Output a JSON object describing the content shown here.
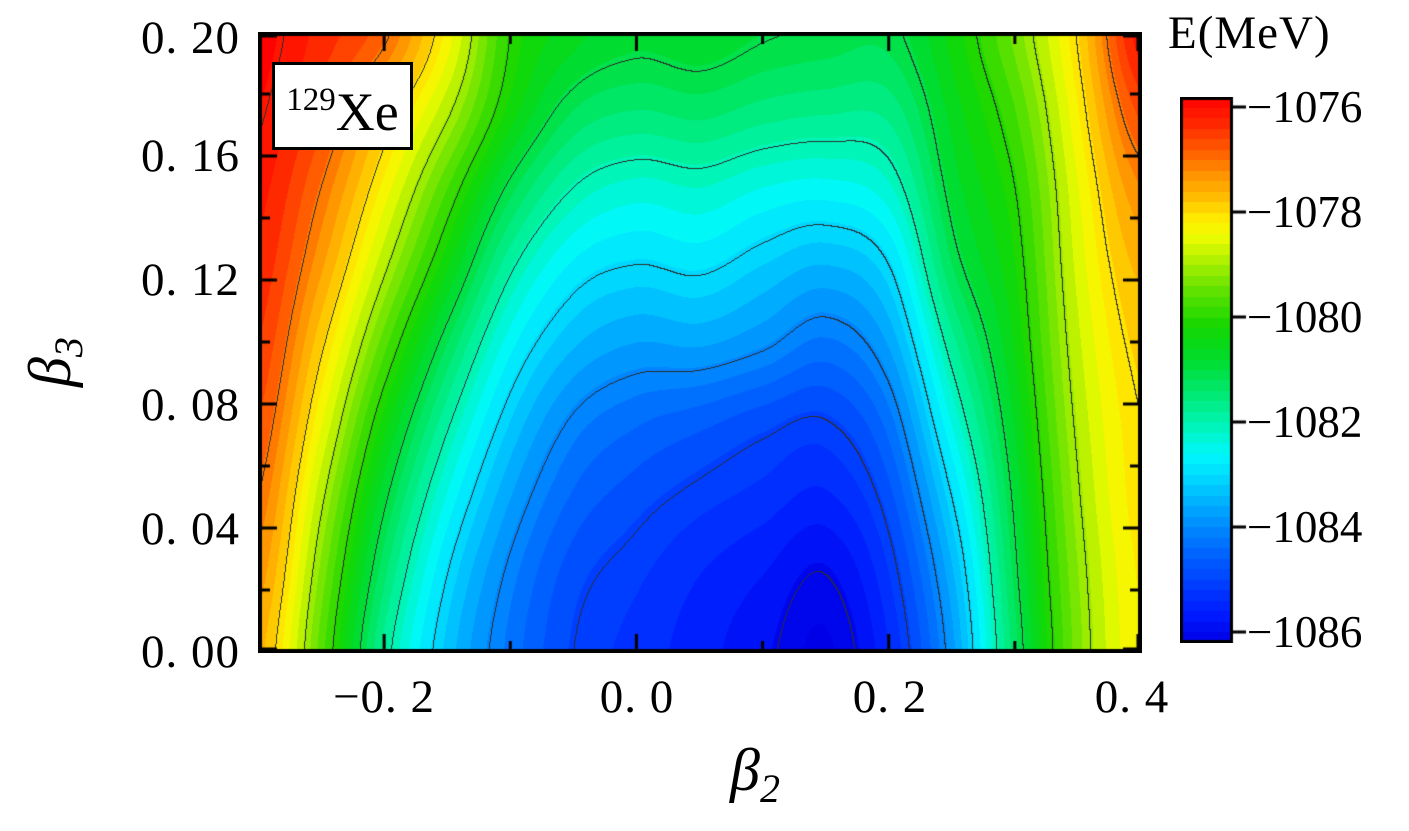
{
  "chart_data": {
    "type": "contour",
    "description": "Potential energy surface of 129Xe in the (beta2, beta3) deformation plane",
    "annotation": {
      "mass": "129",
      "element": "Xe"
    },
    "x_axis": {
      "label_base": "β",
      "label_sub": "2",
      "range": [
        -0.3,
        0.4
      ],
      "tick_values": [
        -0.2,
        0.0,
        0.2,
        0.4
      ],
      "tick_labels": [
        "−0. 2",
        "0. 0",
        "0. 2",
        "0. 4"
      ],
      "minor_tick_values": [
        -0.1,
        0.1,
        0.3
      ]
    },
    "y_axis": {
      "label_base": "β",
      "label_sub": "3",
      "range": [
        0.0,
        0.2
      ],
      "tick_values": [
        0.2,
        0.16,
        0.12,
        0.08,
        0.04,
        0.0
      ],
      "tick_labels": [
        "0. 20",
        "0. 16",
        "0. 12",
        "0. 08",
        "0. 04",
        "0. 00"
      ],
      "minor_tick_values": [
        0.02,
        0.06,
        0.1,
        0.14,
        0.18
      ]
    },
    "colorbar": {
      "title": "E(MeV)",
      "tick_values": [
        -1076,
        -1078,
        -1080,
        -1082,
        -1084,
        -1086
      ],
      "tick_labels": [
        "−1076",
        "−1078",
        "−1080",
        "−1082",
        "−1084",
        "−1086"
      ],
      "color_range_mev": [
        -1086.2,
        -1075.8
      ],
      "band_step_mev": 0.2
    },
    "contour_levels_mev": [
      -1086,
      -1085,
      -1084,
      -1083,
      -1082,
      -1081,
      -1080,
      -1079,
      -1078,
      -1077,
      -1076
    ],
    "fill_band_mev": 0.25,
    "global_minimum": {
      "beta2": 0.17,
      "beta3": 0.0,
      "energy_mev": -1086.3
    },
    "secondary_minimum": {
      "beta2": -0.07,
      "beta3": 0.0,
      "energy_mev": -1085.0
    },
    "grid": {
      "beta2": [
        -0.3,
        -0.25,
        -0.2,
        -0.15,
        -0.1,
        -0.05,
        0.0,
        0.05,
        0.1,
        0.15,
        0.2,
        0.25,
        0.3,
        0.35,
        0.4
      ],
      "beta3": [
        0.0,
        0.025,
        0.05,
        0.075,
        0.1,
        0.125,
        0.15,
        0.175,
        0.2
      ],
      "energy_mev": [
        [
          -1077.6,
          -1079.6,
          -1081.8,
          -1083.3,
          -1084.3,
          -1085.0,
          -1085.3,
          -1085.6,
          -1085.9,
          -1086.25,
          -1085.45,
          -1083.8,
          -1081.3,
          -1079.3,
          -1078.2
        ],
        [
          -1077.3,
          -1079.3,
          -1081.4,
          -1083.0,
          -1084.1,
          -1084.85,
          -1085.15,
          -1085.45,
          -1085.7,
          -1086.0,
          -1085.2,
          -1083.5,
          -1081.1,
          -1079.2,
          -1078.15
        ],
        [
          -1077.0,
          -1078.9,
          -1080.9,
          -1082.5,
          -1083.7,
          -1084.5,
          -1084.85,
          -1085.1,
          -1085.3,
          -1085.5,
          -1084.8,
          -1083.0,
          -1080.9,
          -1079.05,
          -1078.05
        ],
        [
          -1076.7,
          -1078.4,
          -1080.3,
          -1081.9,
          -1083.2,
          -1084.05,
          -1084.4,
          -1084.6,
          -1084.85,
          -1085.0,
          -1084.3,
          -1082.4,
          -1080.65,
          -1078.9,
          -1078.0
        ],
        [
          -1076.45,
          -1077.9,
          -1079.6,
          -1081.2,
          -1082.6,
          -1083.4,
          -1083.7,
          -1083.65,
          -1083.9,
          -1084.25,
          -1083.65,
          -1081.8,
          -1080.4,
          -1078.75,
          -1077.85
        ],
        [
          -1076.25,
          -1077.4,
          -1078.9,
          -1080.4,
          -1081.9,
          -1082.75,
          -1083.0,
          -1082.9,
          -1083.2,
          -1083.45,
          -1083.0,
          -1081.2,
          -1080.2,
          -1078.6,
          -1077.6
        ],
        [
          -1076.1,
          -1077.0,
          -1078.3,
          -1079.7,
          -1081.1,
          -1082.0,
          -1082.3,
          -1082.2,
          -1082.45,
          -1082.55,
          -1082.25,
          -1080.85,
          -1080.0,
          -1078.45,
          -1077.2
        ],
        [
          -1075.95,
          -1076.6,
          -1077.7,
          -1078.9,
          -1080.3,
          -1081.2,
          -1081.45,
          -1081.35,
          -1081.55,
          -1081.65,
          -1081.6,
          -1080.6,
          -1079.7,
          -1078.2,
          -1076.6
        ],
        [
          -1075.85,
          -1076.3,
          -1076.9,
          -1078.3,
          -1080.0,
          -1080.6,
          -1080.85,
          -1080.75,
          -1080.95,
          -1081.05,
          -1081.1,
          -1080.35,
          -1079.35,
          -1077.95,
          -1076.0
        ]
      ]
    },
    "colormap_stops": [
      [
        0.0,
        0,
        0,
        230
      ],
      [
        0.05,
        0,
        25,
        255
      ],
      [
        0.12,
        0,
        70,
        255
      ],
      [
        0.19,
        0,
        120,
        255
      ],
      [
        0.25,
        0,
        170,
        255
      ],
      [
        0.3,
        0,
        215,
        255
      ],
      [
        0.345,
        0,
        248,
        252
      ],
      [
        0.4,
        0,
        245,
        180
      ],
      [
        0.46,
        0,
        232,
        110
      ],
      [
        0.52,
        0,
        220,
        45
      ],
      [
        0.58,
        20,
        215,
        0
      ],
      [
        0.64,
        90,
        225,
        0
      ],
      [
        0.7,
        175,
        240,
        0
      ],
      [
        0.745,
        240,
        252,
        0
      ],
      [
        0.775,
        255,
        238,
        0
      ],
      [
        0.81,
        255,
        195,
        0
      ],
      [
        0.855,
        255,
        150,
        0
      ],
      [
        0.9,
        255,
        95,
        0
      ],
      [
        0.95,
        255,
        40,
        0
      ],
      [
        1.0,
        255,
        0,
        0
      ]
    ],
    "contour_line_color": "#2d2d2d",
    "frame_color": "#000000"
  }
}
